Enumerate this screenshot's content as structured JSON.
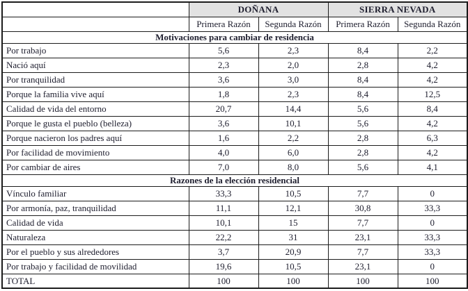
{
  "chart_data": {
    "type": "table",
    "column_groups": [
      {
        "label": "DOÑANA",
        "span": 2
      },
      {
        "label": "SIERRA NEVADA",
        "span": 2
      }
    ],
    "subcolumns": [
      "Primera Razón",
      "Segunda Razón",
      "Primera Razón",
      "Segunda Razón"
    ],
    "sections": [
      {
        "title": "Motivaciones para cambiar de residencia",
        "rows": [
          {
            "label": "Por trabajo",
            "values": [
              "5,6",
              "2,3",
              "8,4",
              "2,2"
            ]
          },
          {
            "label": "Nació aquí",
            "values": [
              "2,3",
              "2,0",
              "2,8",
              "4,2"
            ]
          },
          {
            "label": "Por tranquilidad",
            "values": [
              "3,6",
              "3,0",
              "8,4",
              "4,2"
            ]
          },
          {
            "label": "Porque la familia vive aquí",
            "values": [
              "1,8",
              "2,3",
              "8,4",
              "12,5"
            ]
          },
          {
            "label": "Calidad de vida del entorno",
            "values": [
              "20,7",
              "14,4",
              "5,6",
              "8,4"
            ]
          },
          {
            "label": "Porque le gusta el pueblo (belleza)",
            "values": [
              "3,6",
              "10,1",
              "5,6",
              "4,2"
            ]
          },
          {
            "label": "Porque nacieron los padres aquí",
            "values": [
              "1,6",
              "2,2",
              "2,8",
              "6,3"
            ]
          },
          {
            "label": "Por facilidad de movimiento",
            "values": [
              "4,0",
              "6,0",
              "2,8",
              "4,2"
            ]
          },
          {
            "label": "Por cambiar de aires",
            "values": [
              "7,0",
              "8,0",
              "5,6",
              "4,1"
            ]
          }
        ]
      },
      {
        "title": "Razones de la elección residencial",
        "rows": [
          {
            "label": "Vínculo familiar",
            "values": [
              "33,3",
              "10,5",
              "7,7",
              "0"
            ]
          },
          {
            "label": "Por armonía, paz, tranquilidad",
            "values": [
              "11,1",
              "12,1",
              "30,8",
              "33,3"
            ]
          },
          {
            "label": "Calidad de vida",
            "values": [
              "10,1",
              "15",
              "7,7",
              "0"
            ]
          },
          {
            "label": "Naturaleza",
            "values": [
              "22,2",
              "31",
              "23,1",
              "33,3"
            ]
          },
          {
            "label": "Por el pueblo y sus alrededores",
            "values": [
              "3,7",
              "20,9",
              "7,7",
              "33,3"
            ]
          },
          {
            "label": "Por trabajo y facilidad de movilidad",
            "values": [
              "19,6",
              "10,5",
              "23,1",
              "0"
            ]
          },
          {
            "label": "TOTAL",
            "values": [
              "100",
              "100",
              "100",
              "100"
            ]
          }
        ]
      }
    ]
  },
  "colors": {
    "header_bg": "#e2e2e2",
    "border": "#1b1b1b",
    "text": "#202030",
    "background": "#ffffff"
  }
}
